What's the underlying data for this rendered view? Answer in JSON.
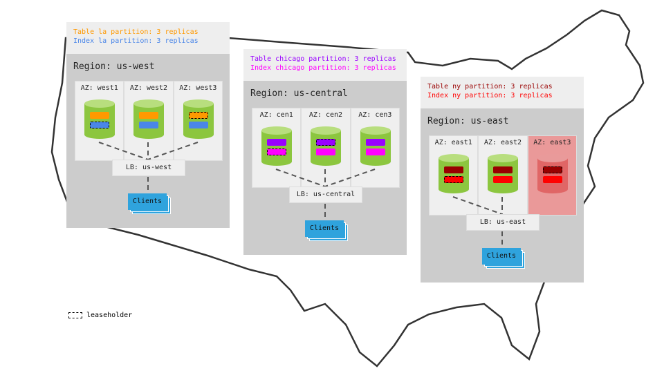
{
  "colors": {
    "table_west": "#ff9900",
    "index_west": "#4a86e8",
    "table_central": "#9900ff",
    "index_central": "#ff00ff",
    "table_east": "#990000",
    "index_east": "#ff0000",
    "db": "#8cc63f",
    "down_az": "#ea9999",
    "clients": "#2fa3dd"
  },
  "regions": [
    {
      "id": "west",
      "table_text": "Table la partition: 3 replicas",
      "index_text": "Index la partition: 3 replicas",
      "table_color": "#ff9900",
      "index_color": "#4a86e8",
      "label": "Region: us-west",
      "lb": "LB: us-west",
      "clients": "Clients",
      "azs": [
        {
          "label": "AZ: west1",
          "leaseholder": "index",
          "down": false,
          "linked": true
        },
        {
          "label": "AZ: west2",
          "leaseholder": null,
          "down": false,
          "linked": true
        },
        {
          "label": "AZ: west3",
          "leaseholder": "table",
          "down": false,
          "linked": true
        }
      ]
    },
    {
      "id": "central",
      "table_text": "Table chicago partition: 3 replicas",
      "index_text": "Index chicago partition: 3 replicas",
      "table_color": "#9900ff",
      "index_color": "#ff00ff",
      "label": "Region: us-central",
      "lb": "LB: us-central",
      "clients": "Clients",
      "azs": [
        {
          "label": "AZ: cen1",
          "leaseholder": "index",
          "down": false,
          "linked": true
        },
        {
          "label": "AZ: cen2",
          "leaseholder": "table",
          "down": false,
          "linked": true
        },
        {
          "label": "AZ: cen3",
          "leaseholder": null,
          "down": false,
          "linked": true
        }
      ]
    },
    {
      "id": "east",
      "table_text": "Table ny partition: 3 replicas",
      "index_text": "Index ny partition: 3 replicas",
      "table_color": "#990000",
      "index_color": "#ff0000",
      "label": "Region: us-east",
      "lb": "LB: us-east",
      "clients": "Clients",
      "azs": [
        {
          "label": "AZ: east1",
          "leaseholder": "index",
          "down": false,
          "linked": true
        },
        {
          "label": "AZ: east2",
          "leaseholder": null,
          "down": false,
          "linked": true
        },
        {
          "label": "AZ: east3",
          "leaseholder": "table",
          "down": true,
          "linked": false
        }
      ]
    }
  ],
  "legend": {
    "label": "leaseholder"
  }
}
